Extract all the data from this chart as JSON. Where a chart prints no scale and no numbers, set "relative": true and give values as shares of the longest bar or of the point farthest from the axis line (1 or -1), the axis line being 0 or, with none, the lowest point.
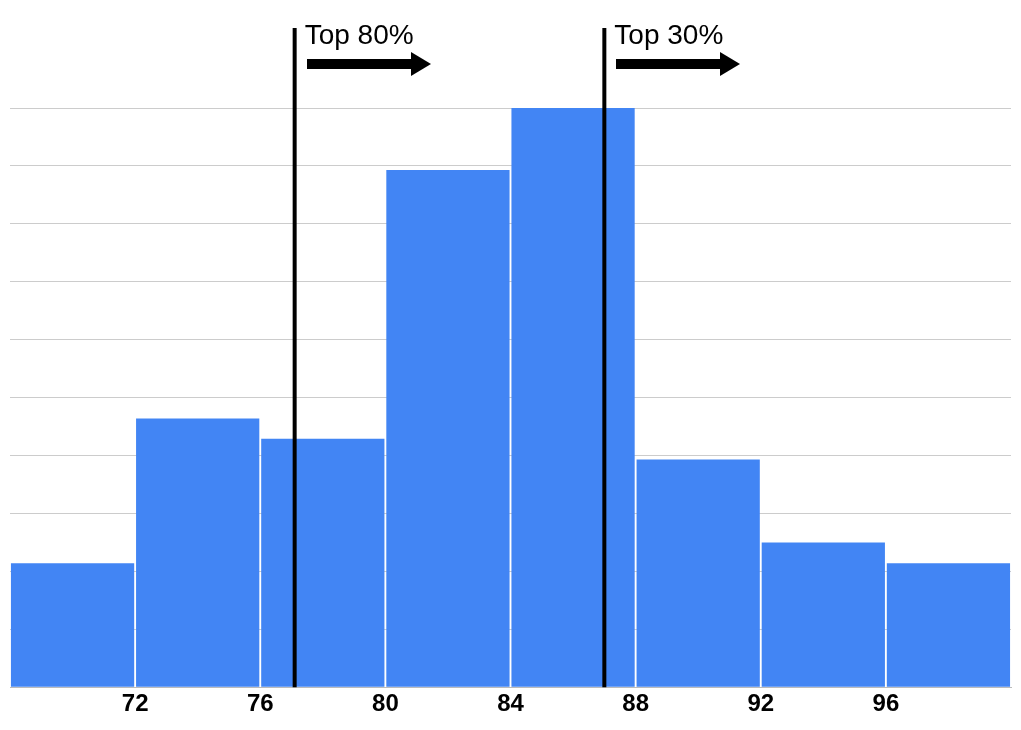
{
  "chart_data": {
    "type": "bar",
    "relative": true,
    "x": [
      70,
      74,
      78,
      82,
      86,
      90,
      94,
      98
    ],
    "values": [
      0.214,
      0.464,
      0.429,
      0.893,
      1,
      0.393,
      0.25,
      0.214
    ],
    "color": "#4285f4",
    "xlim": [
      68,
      100
    ],
    "xticks": [
      72,
      76,
      80,
      84,
      88,
      92,
      96
    ],
    "grid": "y",
    "ref_lines": [
      {
        "axis": "x",
        "value": 77.1,
        "label": "Top 80%",
        "color": "#000000"
      },
      {
        "axis": "x",
        "value": 87,
        "label": "Top 30%",
        "color": "#000000"
      }
    ]
  }
}
